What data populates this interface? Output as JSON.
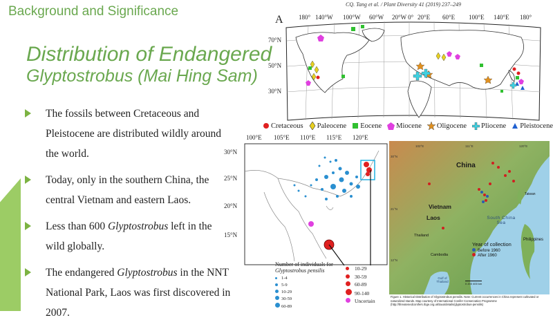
{
  "slide": {
    "section_title": "Background and Significance",
    "title_line1": "Distribution of Endangered",
    "title_line2": "Glyptostrobus (Mai Hing Sam)",
    "bullets": [
      {
        "parts": [
          "The fossils between Cretaceous and Pleistocene are distributed wildly around the world."
        ]
      },
      {
        "parts": [
          "Today, only in the southern China, the central Vietnam and eastern Laos."
        ]
      },
      {
        "before": "Less than 600 ",
        "italic": "Glyptostrobus",
        "after": " left in the wild globally."
      },
      {
        "before": "The endangered ",
        "italic": "Glyptostrobus",
        "after": " in the NNT National Park, Laos was first discovered in 2007."
      }
    ]
  },
  "figure": {
    "citation": "CQ. Tang et al. / Plant Diversity 41 (2019) 237–249",
    "panel_a_letter": "A",
    "map_a": {
      "lon_labels": [
        "180°",
        "140°W",
        "100°W",
        "60°W",
        "20°W 0°",
        "20°E",
        "60°E",
        "100°E",
        "140°E",
        "180°"
      ],
      "lat_labels": [
        "70°N",
        "50°N",
        "30°N"
      ]
    },
    "legend": [
      {
        "label": "Cretaceous",
        "color": "#e02020",
        "shape": "circle"
      },
      {
        "label": "Paleocene",
        "color": "#e8d020",
        "shape": "diamond"
      },
      {
        "label": "Eocene",
        "color": "#30c030",
        "shape": "square"
      },
      {
        "label": "Miocene",
        "color": "#e040e0",
        "shape": "pentagon"
      },
      {
        "label": "Oligocene",
        "color": "#e09020",
        "shape": "star"
      },
      {
        "label": "Pliocene",
        "color": "#40d0e0",
        "shape": "cross"
      },
      {
        "label": "Pleistocene",
        "color": "#2060d0",
        "shape": "triangle"
      }
    ],
    "map_b": {
      "lon_labels": [
        "100°E",
        "105°E",
        "110°E",
        "115°E",
        "120°E"
      ],
      "lat_labels": [
        "30°N",
        "25°N",
        "20°N",
        "15°N"
      ]
    },
    "size_legend": {
      "title_line1": "Number of individuals for",
      "title_line2": "Glyptostrobus pensilis",
      "blue": [
        "1-4",
        "5-9",
        "10-29",
        "30-59",
        "60-89"
      ],
      "red": [
        "10-29",
        "30-59",
        "60-89",
        "90-140",
        "Uncertain"
      ]
    },
    "map_c": {
      "labels": {
        "china": "China",
        "vietnam": "Vietnam",
        "laos": "Laos",
        "thailand": "Thailand",
        "cambodia": "Cambodia",
        "taiwan": "Taiwan",
        "south_china_sea": "South China Sea",
        "philippines": "Philippines",
        "gulf": "Gulf of Thailand",
        "lat21": "21°N",
        "lat12": "12°N",
        "lat30": "30°N",
        "lon102": "102°E",
        "lon111": "111°E",
        "lon120": "120°E"
      },
      "year_title": "Year of collection",
      "before": "Before 1960",
      "after": "After 1960",
      "scale": "0    200  400 km",
      "colors": {
        "before": "#2a5db0",
        "after": "#d02020"
      }
    },
    "caption": "Figure 1. Historical Distribution of Glyptostrobus pensilis. Note: Current occurrences in China represent cultivated or naturalized stands. Map courtesy of International Conifer Conservation Programme (http://threatenedconifers.rbge.org.uk/taxa/details/glyptostrobus-pensilis)"
  }
}
